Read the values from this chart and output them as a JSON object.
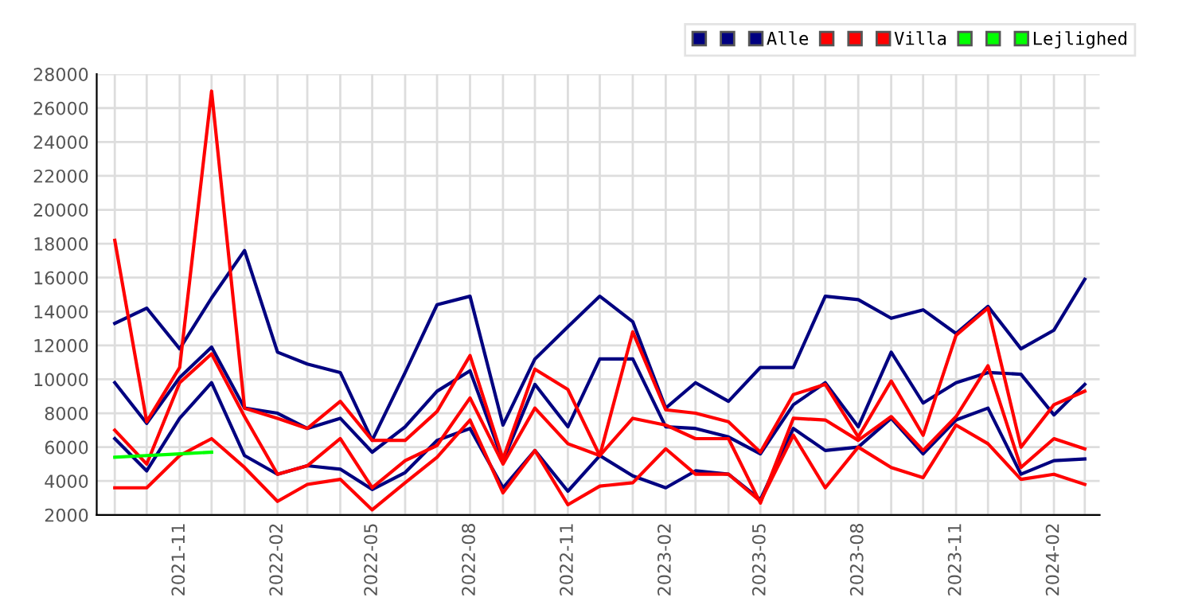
{
  "chart_data": {
    "type": "line",
    "x": [
      "2021-09",
      "2021-10",
      "2021-11",
      "2021-12",
      "2022-01",
      "2022-02",
      "2022-03",
      "2022-04",
      "2022-05",
      "2022-06",
      "2022-07",
      "2022-08",
      "2022-09",
      "2022-10",
      "2022-11",
      "2022-12",
      "2023-01",
      "2023-02",
      "2023-03",
      "2023-04",
      "2023-05",
      "2023-06",
      "2023-07",
      "2023-08",
      "2023-09",
      "2023-10",
      "2023-11",
      "2023-12",
      "2024-01",
      "2024-02",
      "2024-03"
    ],
    "xlim": [
      "2021-08-15",
      "2024-03-15"
    ],
    "xticks": [
      {
        "value": "2021-09",
        "label": null
      },
      {
        "value": "2021-10",
        "label": null
      },
      {
        "value": "2021-11",
        "label": "2021-11"
      },
      {
        "value": "2021-12",
        "label": null
      },
      {
        "value": "2022-01",
        "label": null
      },
      {
        "value": "2022-02",
        "label": "2022-02"
      },
      {
        "value": "2022-03",
        "label": null
      },
      {
        "value": "2022-04",
        "label": null
      },
      {
        "value": "2022-05",
        "label": "2022-05"
      },
      {
        "value": "2022-06",
        "label": null
      },
      {
        "value": "2022-07",
        "label": null
      },
      {
        "value": "2022-08",
        "label": "2022-08"
      },
      {
        "value": "2022-09",
        "label": null
      },
      {
        "value": "2022-10",
        "label": null
      },
      {
        "value": "2022-11",
        "label": "2022-11"
      },
      {
        "value": "2022-12",
        "label": null
      },
      {
        "value": "2023-01",
        "label": null
      },
      {
        "value": "2023-02",
        "label": "2023-02"
      },
      {
        "value": "2023-03",
        "label": null
      },
      {
        "value": "2023-04",
        "label": null
      },
      {
        "value": "2023-05",
        "label": "2023-05"
      },
      {
        "value": "2023-06",
        "label": null
      },
      {
        "value": "2023-07",
        "label": null
      },
      {
        "value": "2023-08",
        "label": "2023-08"
      },
      {
        "value": "2023-09",
        "label": null
      },
      {
        "value": "2023-10",
        "label": null
      },
      {
        "value": "2023-11",
        "label": "2023-11"
      },
      {
        "value": "2023-12",
        "label": null
      },
      {
        "value": "2024-01",
        "label": null
      },
      {
        "value": "2024-02",
        "label": "2024-02"
      },
      {
        "value": "2024-03",
        "label": null
      }
    ],
    "ylim": [
      2000,
      28000
    ],
    "yticks": [
      2000,
      4000,
      6000,
      8000,
      10000,
      12000,
      14000,
      16000,
      18000,
      20000,
      22000,
      24000,
      26000,
      28000
    ],
    "grid": true,
    "legend": "top right",
    "marker": "none",
    "line_style": "solid",
    "series": [
      {
        "name": null,
        "color": "#000080",
        "values": [
          9800,
          7400,
          10100,
          11900,
          8300,
          8000,
          7100,
          7700,
          5700,
          7200,
          9300,
          10500,
          5200,
          9700,
          7200,
          11200,
          11200,
          7200,
          7100,
          6600,
          5600,
          8500,
          9800,
          7200,
          11600,
          8600,
          9800,
          10400,
          10300,
          7900,
          9700
        ]
      },
      {
        "name": null,
        "color": "#000080",
        "values": [
          6500,
          4600,
          7700,
          9800,
          5500,
          4400,
          4900,
          4700,
          3500,
          4500,
          6400,
          7100,
          3600,
          5800,
          3400,
          5500,
          4300,
          3600,
          4600,
          4400,
          2900,
          7100,
          5800,
          6000,
          7700,
          5600,
          7600,
          8300,
          4400,
          5200,
          5300
        ]
      },
      {
        "name": "Alle",
        "color": "#000080",
        "values": [
          13300,
          14200,
          11800,
          14800,
          17600,
          11600,
          10900,
          10400,
          6400,
          10400,
          14400,
          14900,
          7300,
          11200,
          13100,
          14900,
          13400,
          8300,
          9800,
          8700,
          10700,
          10700,
          14900,
          14700,
          13600,
          14100,
          12700,
          14300,
          11800,
          12900,
          15900
        ]
      },
      {
        "name": null,
        "color": "#ff0000",
        "values": [
          7000,
          5000,
          9800,
          11500,
          7800,
          4400,
          4900,
          6500,
          3600,
          5200,
          6100,
          8900,
          5000,
          8300,
          6200,
          5500,
          7700,
          7300,
          6500,
          6500,
          2700,
          7700,
          7600,
          6400,
          7800,
          5800,
          7800,
          10800,
          4800,
          6500,
          5900
        ]
      },
      {
        "name": null,
        "color": "#ff0000",
        "values": [
          3600,
          3600,
          5500,
          6500,
          4800,
          2800,
          3800,
          4100,
          2300,
          3900,
          5400,
          7600,
          3300,
          5800,
          2600,
          3700,
          3900,
          5900,
          4400,
          4400,
          2800,
          6700,
          3600,
          6000,
          4800,
          4200,
          7300,
          6200,
          4100,
          4400,
          3800
        ]
      },
      {
        "name": "Villa",
        "color": "#ff0000",
        "values": [
          18200,
          7500,
          10700,
          27000,
          8300,
          7700,
          7100,
          8700,
          6400,
          6400,
          8100,
          11400,
          5300,
          10600,
          9400,
          5500,
          12800,
          8200,
          8000,
          7500,
          5700,
          9100,
          9700,
          6600,
          9900,
          6700,
          12600,
          14200,
          6000,
          8500,
          9300
        ]
      },
      {
        "name": null,
        "color": "#00ff00",
        "values": [
          null,
          null,
          null,
          null,
          null,
          null,
          null,
          null,
          null,
          null,
          null,
          null,
          null,
          null,
          null,
          null,
          null,
          null,
          null,
          null,
          null,
          null,
          null,
          null,
          null,
          null,
          null,
          null,
          null,
          null,
          null
        ]
      },
      {
        "name": null,
        "color": "#00ff00",
        "values": [
          null,
          null,
          null,
          null,
          null,
          null,
          null,
          null,
          null,
          null,
          null,
          null,
          null,
          null,
          null,
          null,
          null,
          null,
          null,
          null,
          null,
          null,
          null,
          null,
          null,
          null,
          null,
          null,
          null,
          null,
          null
        ]
      },
      {
        "name": "Lejlighed",
        "color": "#00ff00",
        "values": [
          5400,
          5500,
          5600,
          5700,
          null,
          null,
          null,
          null,
          null,
          null,
          null,
          null,
          null,
          null,
          null,
          null,
          null,
          null,
          null,
          null,
          null,
          null,
          null,
          null,
          null,
          null,
          null,
          null,
          null,
          null,
          null
        ]
      }
    ]
  }
}
